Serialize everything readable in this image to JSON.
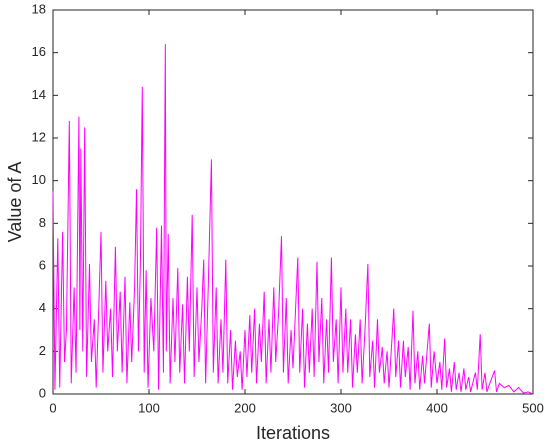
{
  "chart_data": {
    "type": "line",
    "x_label": "Iterations",
    "y_label": "Value of A",
    "xlim": [
      0,
      500
    ],
    "xticks": [
      0,
      100,
      200,
      300,
      400,
      500
    ],
    "ylim": [
      0,
      18
    ],
    "yticks": [
      0,
      2,
      4,
      6,
      8,
      10,
      12,
      14,
      16,
      18
    ],
    "series": [
      {
        "color": "#ff00ff",
        "x": [
          0,
          2,
          5,
          7,
          10,
          12,
          14,
          17,
          19,
          22,
          24,
          27,
          28,
          29,
          31,
          33,
          35,
          38,
          40,
          43,
          45,
          48,
          50,
          52,
          55,
          57,
          60,
          62,
          65,
          67,
          70,
          72,
          75,
          77,
          80,
          82,
          85,
          87,
          89,
          91,
          93,
          95,
          97,
          99,
          102,
          105,
          108,
          110,
          113,
          115,
          117,
          118,
          120,
          122,
          125,
          127,
          130,
          132,
          135,
          137,
          140,
          142,
          145,
          147,
          150,
          152,
          155,
          157,
          159,
          162,
          165,
          167,
          170,
          172,
          175,
          177,
          180,
          182,
          185,
          187,
          190,
          192,
          195,
          197,
          200,
          202,
          205,
          207,
          210,
          212,
          215,
          217,
          220,
          222,
          225,
          227,
          230,
          232,
          235,
          238,
          240,
          243,
          245,
          248,
          250,
          255,
          257,
          260,
          262,
          265,
          267,
          270,
          272,
          275,
          277,
          280,
          282,
          285,
          287,
          290,
          292,
          295,
          297,
          300,
          302,
          305,
          307,
          310,
          312,
          315,
          317,
          320,
          322,
          325,
          328,
          330,
          333,
          335,
          338,
          340,
          343,
          345,
          348,
          350,
          355,
          357,
          360,
          362,
          365,
          367,
          370,
          372,
          375,
          377,
          380,
          382,
          385,
          387,
          392,
          394,
          397,
          400,
          403,
          405,
          408,
          410,
          413,
          415,
          418,
          420,
          423,
          425,
          428,
          430,
          433,
          435,
          440,
          442,
          445,
          447,
          450,
          452,
          455,
          460,
          462,
          465,
          470,
          475,
          480,
          485,
          490,
          495,
          500
        ],
        "values": [
          9.5,
          0.2,
          7.3,
          0.3,
          7.6,
          1.5,
          3,
          12.8,
          0.5,
          5,
          1,
          13,
          3,
          11.5,
          2,
          12.5,
          0.8,
          6.1,
          1.5,
          3.5,
          0.3,
          4.5,
          7.6,
          1,
          5.3,
          2,
          4,
          0.8,
          6.9,
          2,
          4.8,
          1,
          5.5,
          0.5,
          4.3,
          1.5,
          5,
          9.6,
          2,
          6,
          14.4,
          1,
          5.8,
          0.3,
          4.5,
          2,
          7.8,
          0.2,
          7.9,
          1,
          16.4,
          2,
          7.5,
          0.5,
          4.5,
          1.5,
          5.9,
          1,
          4.2,
          0.5,
          5.5,
          2,
          8.4,
          0.8,
          5,
          1.5,
          4,
          6.3,
          0.5,
          5.5,
          11,
          1,
          5,
          0.5,
          3.5,
          1,
          6.3,
          0.5,
          3,
          0.2,
          2.5,
          0.8,
          2,
          0.2,
          3,
          0.8,
          3.7,
          1,
          4,
          0.5,
          3.3,
          1.5,
          4.8,
          0.5,
          3.5,
          1,
          5,
          1.5,
          3.8,
          7.4,
          1,
          4.5,
          0.5,
          3,
          1.2,
          6.4,
          1,
          4,
          0.3,
          3.3,
          1,
          4,
          0.8,
          6.2,
          1.5,
          4.5,
          0.5,
          3.5,
          1,
          6.4,
          1.5,
          3.5,
          0.5,
          5,
          1,
          4,
          1,
          3.5,
          0.3,
          2.8,
          1,
          3.5,
          0.5,
          3,
          6.1,
          0.8,
          2.5,
          0.3,
          3.5,
          1,
          2.2,
          0.5,
          2,
          0.3,
          4,
          0.8,
          2.5,
          0.3,
          2.5,
          0.8,
          2.2,
          0.2,
          3.9,
          0.5,
          2,
          0.2,
          1.8,
          0.5,
          3.3,
          0.3,
          2,
          0.5,
          1.5,
          0.2,
          2.6,
          0.3,
          1.2,
          0.1,
          1.5,
          0.2,
          1,
          0.1,
          1.2,
          0.2,
          0.8,
          0.1,
          1,
          0.2,
          2.8,
          0.2,
          1,
          0.1,
          0.5,
          1.1,
          0.1,
          0.5,
          0.3,
          0.4,
          0.1,
          0.3,
          0.05,
          0.1,
          0
        ]
      }
    ]
  }
}
